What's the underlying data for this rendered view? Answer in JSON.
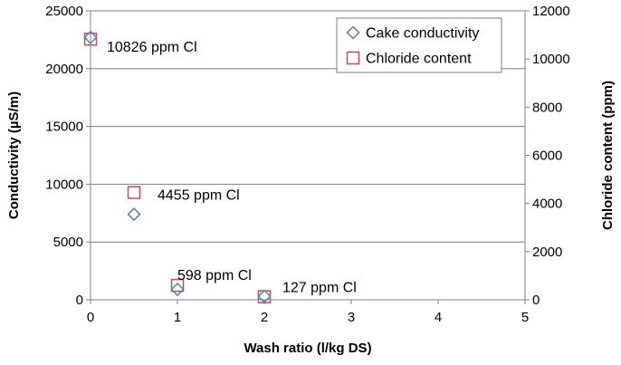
{
  "chart_data": {
    "type": "scatter",
    "xlabel": "Wash ratio (l/kg DS)",
    "ylabel": "Conductivity (µS/m)",
    "y2label": "Chloride content (ppm)",
    "xlim": [
      0,
      5
    ],
    "ylim": [
      0,
      25000
    ],
    "y2lim": [
      0,
      12000
    ],
    "x_ticks": [
      "0",
      "1",
      "2",
      "3",
      "4",
      "5"
    ],
    "y_ticks": [
      "0",
      "5000",
      "10000",
      "15000",
      "20000",
      "25000"
    ],
    "y2_ticks": [
      "0",
      "2000",
      "4000",
      "6000",
      "8000",
      "10000",
      "12000"
    ],
    "grid": "horizontal",
    "legend_position": "top-right",
    "series": [
      {
        "name": "Cake conductivity",
        "axis": "left",
        "marker": "diamond",
        "color": "#4f81bd",
        "x": [
          0,
          0.5,
          1,
          2
        ],
        "y": [
          22700,
          7400,
          900,
          300
        ]
      },
      {
        "name": "Chloride content",
        "axis": "right",
        "marker": "square",
        "color": "#c0504d",
        "x": [
          0,
          0.5,
          1,
          2
        ],
        "y": [
          10826,
          4455,
          598,
          127
        ]
      }
    ],
    "annotations": [
      {
        "text": "10826 ppm Cl",
        "x": 0,
        "y": 10826
      },
      {
        "text": "4455 ppm Cl",
        "x": 0.5,
        "y": 4455
      },
      {
        "text": "598 ppm Cl",
        "x": 1,
        "y": 598
      },
      {
        "text": "127 ppm Cl",
        "x": 2,
        "y": 127
      }
    ]
  }
}
